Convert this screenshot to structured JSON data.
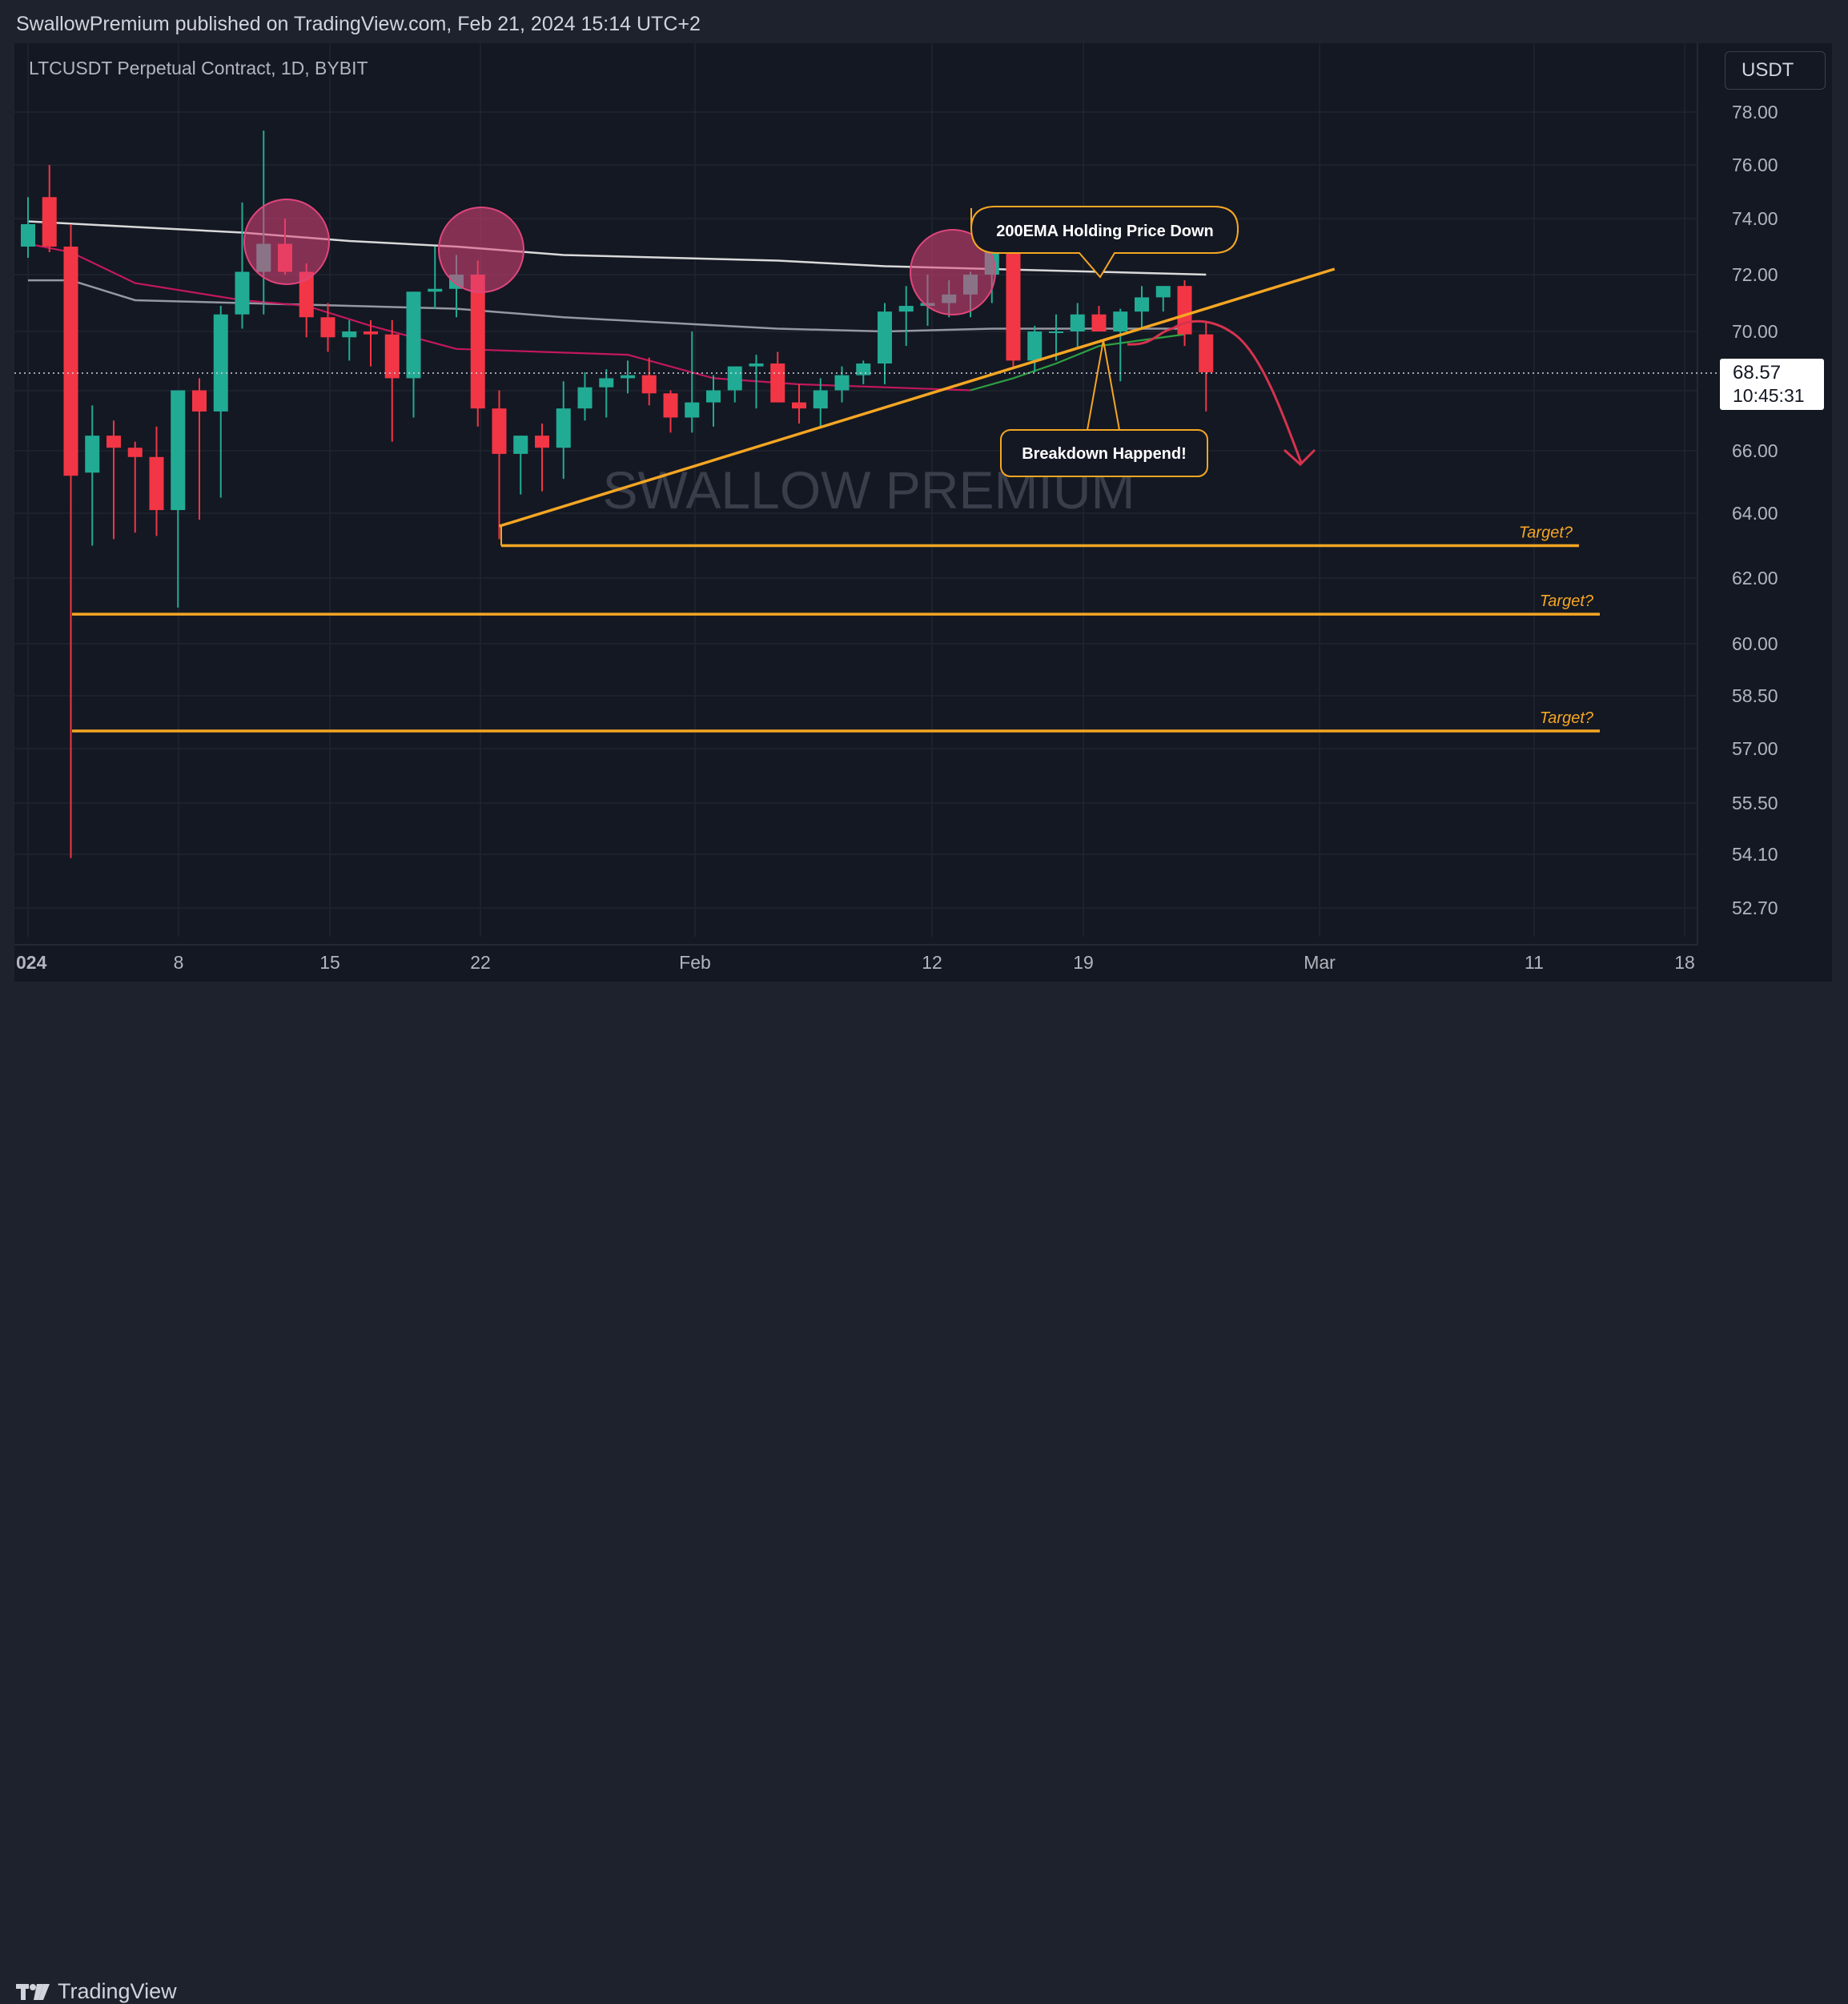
{
  "header": {
    "published_text": "SwallowPremium published on TradingView.com, Feb 21, 2024 15:14 UTC+2"
  },
  "symbol": {
    "title": "LTCUSDT Perpetual Contract, 1D, BYBIT",
    "currency_button": "USDT"
  },
  "watermark": "SWALLOW PREMIUM",
  "last_price": {
    "value": "68.57",
    "countdown": "10:45:31"
  },
  "footer": {
    "brand": "TradingView"
  },
  "colors": {
    "up": "#22ab94",
    "down": "#f23645",
    "accent": "#f5a623",
    "ema_white": "#d9d9d9",
    "ema_gray": "#9598a1",
    "ema_red": "#c2185b",
    "ema_green": "#2ea043",
    "background": "#141823",
    "circle": "#e0457b"
  },
  "annotations": {
    "ema_label": "200EMA Holding Price Down",
    "breakdown_label": "Breakdown Happend!",
    "targets": [
      "Target?",
      "Target?",
      "Target?"
    ]
  },
  "chart_data": {
    "type": "candlestick",
    "x_ticks": [
      "024",
      "8",
      "15",
      "22",
      "Feb",
      "12",
      "19",
      "Mar",
      "11",
      "18"
    ],
    "y_ticks": [
      "78.00",
      "76.00",
      "74.00",
      "72.00",
      "70.00",
      "66.00",
      "64.00",
      "62.00",
      "60.00",
      "58.50",
      "57.00",
      "55.50",
      "54.10",
      "52.70"
    ],
    "first_date": "2024-01-01",
    "candles": [
      [
        73.0,
        74.8,
        72.6,
        73.8
      ],
      [
        74.8,
        76.0,
        72.8,
        73.0
      ],
      [
        73.0,
        73.8,
        54.0,
        65.2
      ],
      [
        65.3,
        67.5,
        63.0,
        66.5
      ],
      [
        66.5,
        67.0,
        63.2,
        66.1
      ],
      [
        66.1,
        66.3,
        63.4,
        65.8
      ],
      [
        65.8,
        66.8,
        63.3,
        64.1
      ],
      [
        64.1,
        68.0,
        61.1,
        68.0
      ],
      [
        68.0,
        68.4,
        63.8,
        67.3
      ],
      [
        67.3,
        70.9,
        64.5,
        70.6
      ],
      [
        70.6,
        74.6,
        70.1,
        72.1
      ],
      [
        72.1,
        77.3,
        70.6,
        73.1
      ],
      [
        73.1,
        74.0,
        72.0,
        72.1
      ],
      [
        72.1,
        72.4,
        69.8,
        70.5
      ],
      [
        70.5,
        71.0,
        69.3,
        69.8
      ],
      [
        69.8,
        70.4,
        69.0,
        70.0
      ],
      [
        70.0,
        70.4,
        68.8,
        69.9
      ],
      [
        69.9,
        70.4,
        66.3,
        68.4
      ],
      [
        68.4,
        71.4,
        67.1,
        71.4
      ],
      [
        71.4,
        73.0,
        70.8,
        71.5
      ],
      [
        71.5,
        72.7,
        70.5,
        72.0
      ],
      [
        72.0,
        72.5,
        66.8,
        67.4
      ],
      [
        67.4,
        68.0,
        63.2,
        65.9
      ],
      [
        65.9,
        66.5,
        64.6,
        66.5
      ],
      [
        66.5,
        66.9,
        64.7,
        66.1
      ],
      [
        66.1,
        68.3,
        65.1,
        67.4
      ],
      [
        67.4,
        68.6,
        67.0,
        68.1
      ],
      [
        68.1,
        68.7,
        67.1,
        68.4
      ],
      [
        68.4,
        69.0,
        67.9,
        68.5
      ],
      [
        68.5,
        69.1,
        67.5,
        67.9
      ],
      [
        67.9,
        68.0,
        66.6,
        67.1
      ],
      [
        67.1,
        70.0,
        66.6,
        67.6
      ],
      [
        67.6,
        68.5,
        66.8,
        68.0
      ],
      [
        68.0,
        68.7,
        67.6,
        68.8
      ],
      [
        68.8,
        69.2,
        67.4,
        68.9
      ],
      [
        68.9,
        69.3,
        67.6,
        67.6
      ],
      [
        67.6,
        68.2,
        66.9,
        67.4
      ],
      [
        67.4,
        68.4,
        66.8,
        68.0
      ],
      [
        68.0,
        68.8,
        67.6,
        68.5
      ],
      [
        68.5,
        69.0,
        68.2,
        68.9
      ],
      [
        68.9,
        71.0,
        68.2,
        70.7
      ],
      [
        70.7,
        71.6,
        69.5,
        70.9
      ],
      [
        70.9,
        72.0,
        70.2,
        71.0
      ],
      [
        71.0,
        71.8,
        70.5,
        71.3
      ],
      [
        71.3,
        72.1,
        70.5,
        72.0
      ],
      [
        72.0,
        73.3,
        71.0,
        73.0
      ],
      [
        73.0,
        73.4,
        68.8,
        69.0
      ],
      [
        69.0,
        70.2,
        68.6,
        70.0
      ],
      [
        70.0,
        70.6,
        69.0,
        70.0
      ],
      [
        70.0,
        71.0,
        69.4,
        70.6
      ],
      [
        70.6,
        70.9,
        70.2,
        70.0
      ],
      [
        70.0,
        70.8,
        68.3,
        70.7
      ],
      [
        70.7,
        71.6,
        70.1,
        71.2
      ],
      [
        71.2,
        71.5,
        70.7,
        71.6
      ],
      [
        71.6,
        71.8,
        69.5,
        69.9
      ],
      [
        69.9,
        70.3,
        67.3,
        68.6
      ]
    ],
    "ema_white": [
      [
        0,
        73.9
      ],
      [
        5,
        73.7
      ],
      [
        10,
        73.5
      ],
      [
        15,
        73.2
      ],
      [
        20,
        73.0
      ],
      [
        25,
        72.7
      ],
      [
        30,
        72.6
      ],
      [
        35,
        72.5
      ],
      [
        40,
        72.3
      ],
      [
        45,
        72.2
      ],
      [
        50,
        72.1
      ],
      [
        55,
        72.0
      ]
    ],
    "ema_gray": [
      [
        0,
        71.8
      ],
      [
        2,
        71.8
      ],
      [
        5,
        71.1
      ],
      [
        10,
        71.0
      ],
      [
        15,
        70.9
      ],
      [
        20,
        70.8
      ],
      [
        25,
        70.5
      ],
      [
        30,
        70.3
      ],
      [
        35,
        70.1
      ],
      [
        40,
        70.0
      ],
      [
        45,
        70.1
      ],
      [
        50,
        70.1
      ],
      [
        54,
        70.1
      ]
    ],
    "ema_red": [
      [
        0,
        73.1
      ],
      [
        2,
        72.8
      ],
      [
        5,
        71.7
      ],
      [
        10,
        71.1
      ],
      [
        13,
        70.9
      ],
      [
        16,
        70.2
      ],
      [
        20,
        69.4
      ],
      [
        24,
        69.3
      ],
      [
        28,
        69.2
      ],
      [
        32,
        68.4
      ],
      [
        36,
        68.2
      ],
      [
        40,
        68.1
      ],
      [
        44,
        68.0
      ]
    ],
    "ema_green": [
      [
        44,
        68.0
      ],
      [
        46,
        68.4
      ],
      [
        48,
        68.9
      ],
      [
        50,
        69.5
      ],
      [
        52,
        69.7
      ],
      [
        54,
        69.9
      ]
    ],
    "trendline": [
      [
        22,
        63.6
      ],
      [
        61,
        72.2
      ]
    ],
    "targets_levels": [
      63.0,
      60.9,
      57.5
    ],
    "last_price": 68.57
  }
}
